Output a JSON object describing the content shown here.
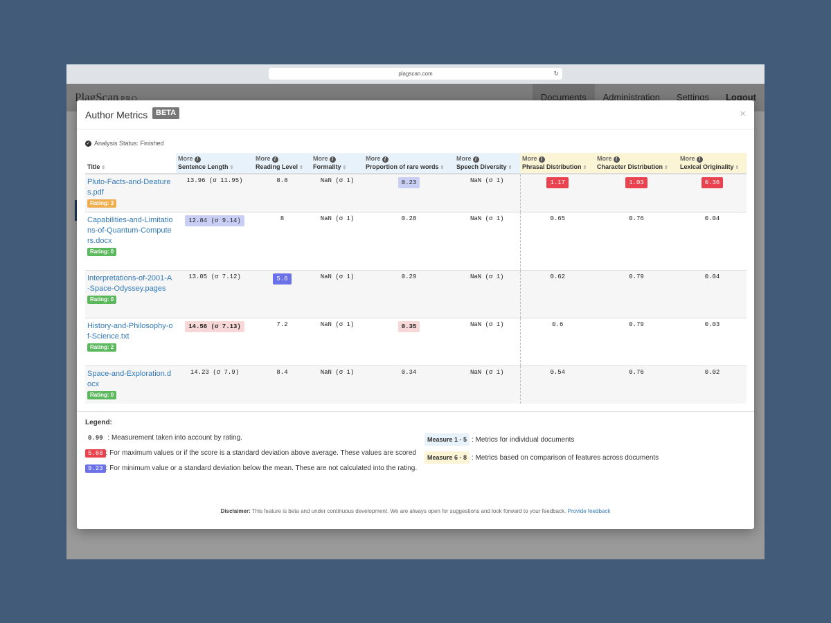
{
  "browser": {
    "url": "plagscan.com"
  },
  "app": {
    "logo": "PlagScan",
    "logo_suffix": "PRO",
    "nav": [
      "Documents",
      "Administration",
      "Settings",
      "Logout"
    ]
  },
  "modal": {
    "title": "Author Metrics",
    "badge": "BETA",
    "close": "×",
    "status": "Analysis Status: Finished"
  },
  "table": {
    "more_label": "More",
    "headers": [
      "Title",
      "Sentence Length",
      "Reading Level",
      "Formality",
      "Proportion of rare words",
      "Speech Diversity",
      "Phrasal Distribution",
      "Character Distribution",
      "Lexical Originality"
    ],
    "rows": [
      {
        "title": "Pluto-Facts-and-Deatures.pdf",
        "rating": "Rating: 3",
        "rating_color": "#f0ad4e",
        "cells": [
          "13.96 (σ 11.95)",
          "8.8",
          "NaN (σ 1)",
          "0.23",
          "NaN (σ 1)",
          "1.17",
          "1.03",
          "0.36"
        ],
        "styles": [
          "",
          "",
          "",
          "lightblue",
          "",
          "red",
          "red",
          "red"
        ]
      },
      {
        "title": "Capabilities-and-Limitations-of-Quantum-Computers.docx",
        "rating": "Rating: 0",
        "rating_color": "#5cb85c",
        "cells": [
          "12.84 (σ 9.14)",
          "8",
          "NaN (σ 1)",
          "0.28",
          "NaN (σ 1)",
          "0.65",
          "0.76",
          "0.04"
        ],
        "styles": [
          "lightblue",
          "",
          "",
          "",
          "",
          "",
          "",
          ""
        ]
      },
      {
        "title": "Interpretations-of-2001-A-Space-Odyssey.pages",
        "rating": "Rating: 0",
        "rating_color": "#5cb85c",
        "cells": [
          "13.05 (σ 7.12)",
          "5.6",
          "NaN (σ 1)",
          "0.29",
          "NaN (σ 1)",
          "0.62",
          "0.79",
          "0.04"
        ],
        "styles": [
          "",
          "blue",
          "",
          "",
          "",
          "",
          "",
          ""
        ]
      },
      {
        "title": "History-and-Philosophy-of-Science.txt",
        "rating": "Rating: 2",
        "rating_color": "#5cb85c",
        "cells": [
          "14.56 (σ 7.13)",
          "7.2",
          "NaN (σ 1)",
          "0.35",
          "NaN (σ 1)",
          "0.6",
          "0.79",
          "0.03"
        ],
        "styles": [
          "lightred",
          "",
          "",
          "lightred",
          "",
          "",
          "",
          ""
        ]
      },
      {
        "title": "Space-and-Exploration.docx",
        "rating": "Rating: 0",
        "rating_color": "#5cb85c",
        "cells": [
          "14.23 (σ 7.9)",
          "8.4",
          "NaN (σ 1)",
          "0.34",
          "NaN (σ 1)",
          "0.54",
          "0.76",
          "0.02"
        ],
        "styles": [
          "",
          "",
          "",
          "",
          "",
          "",
          "",
          ""
        ]
      }
    ]
  },
  "legend": {
    "title": "Legend:",
    "item1_value": "0.99",
    "item1_text": ": Measurement taken into account by rating.",
    "item2_value": "5.68",
    "item2_text": ": For maximum values or if the score is a standard deviation above average. These values are scored",
    "item3_value": "9.23",
    "item3_text": ": For minimum value or a standard deviation below the mean. These are not calculated into the rating.",
    "measure1_tag": "Measure 1 - 5",
    "measure1_text": ": Metrics for individual documents",
    "measure2_tag": "Measure 6 - 8",
    "measure2_text": ": Metrics based on comparison of features across documents"
  },
  "disclaimer": {
    "label": "Disclaimer:",
    "text": " This feature is beta and under continuous development. We are always open for suggestions and look forward to your feedback. ",
    "link": "Provide feedback"
  },
  "colors": {
    "background": "#415b78",
    "link": "#337ab7",
    "highlight_red": "#e8434e",
    "highlight_blue": "#6b72e8",
    "measure_individual": "#e8f2fb",
    "measure_comparison": "#fbf4d5"
  }
}
